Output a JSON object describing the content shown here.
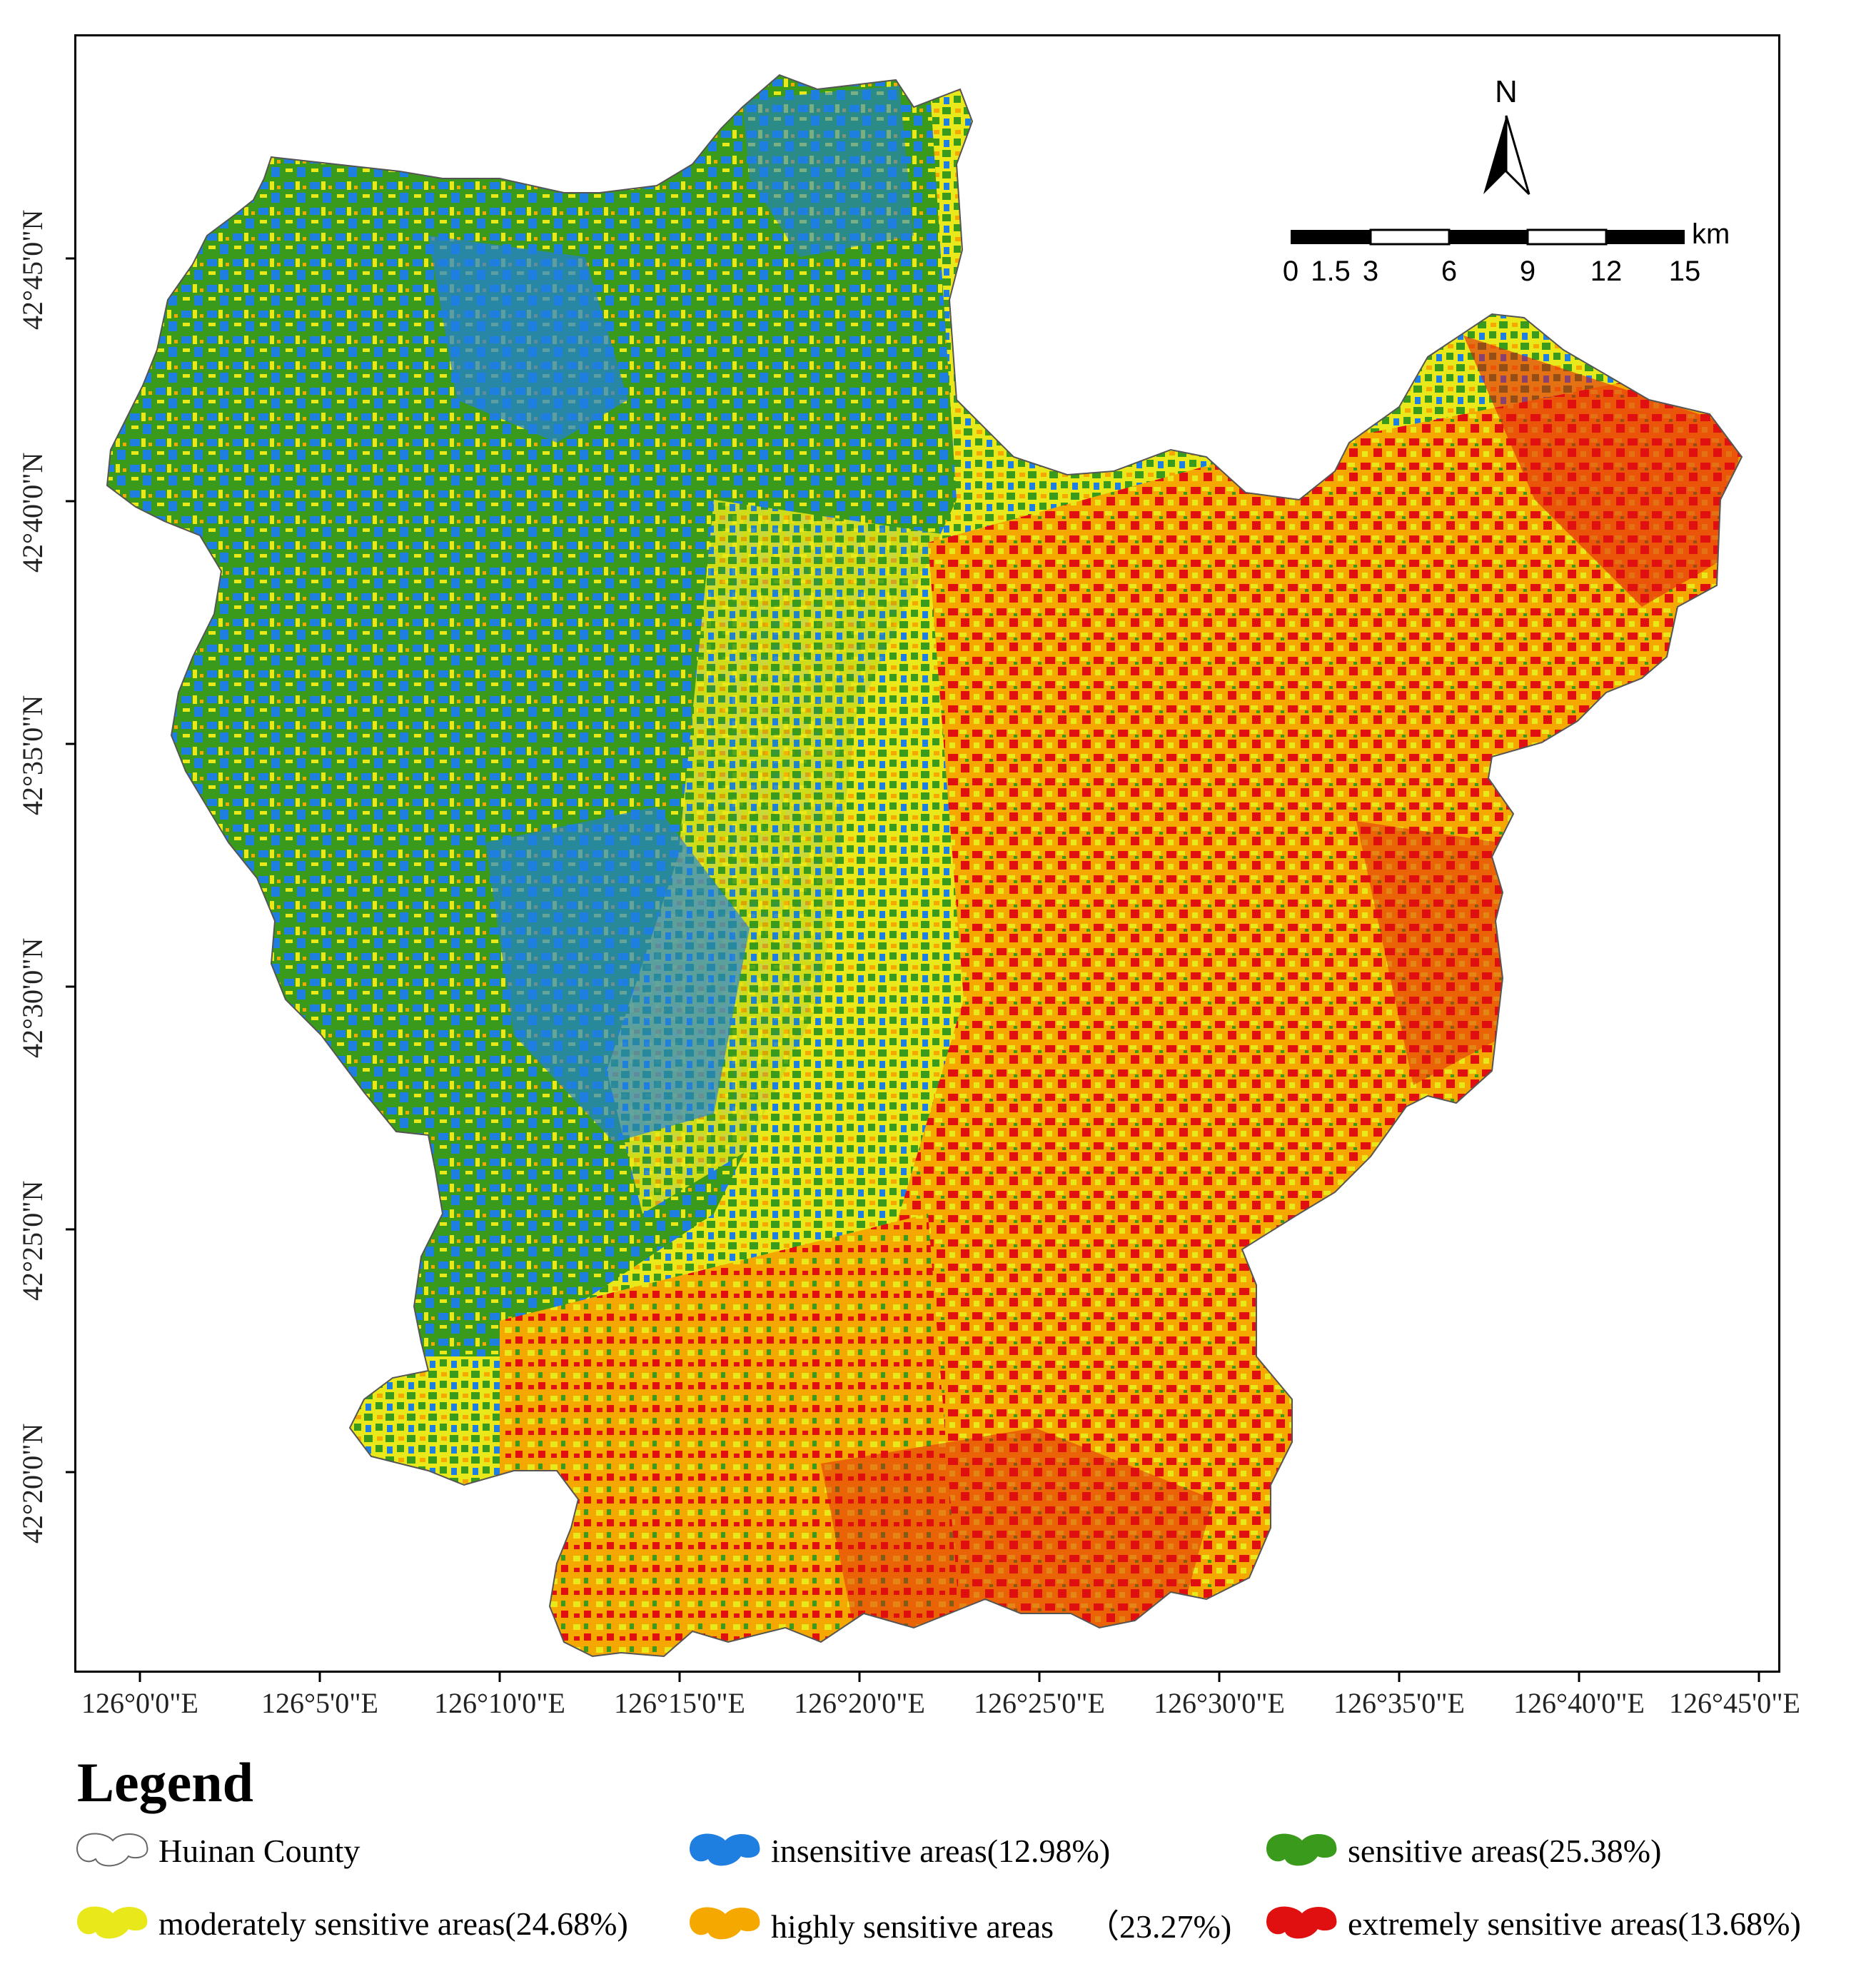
{
  "map": {
    "north_label": "N",
    "scale_unit": "km",
    "scale_ticks": [
      "0",
      "1.5",
      "3",
      "6",
      "9",
      "12",
      "15"
    ],
    "lat_labels": [
      "42°45'0\"N",
      "42°40'0\"N",
      "42°35'0\"N",
      "42°30'0\"N",
      "42°25'0\"N",
      "42°20'0\"N"
    ],
    "lon_labels": [
      "126°0'0\"E",
      "126°5'0\"E",
      "126°10'0\"E",
      "126°15'0\"E",
      "126°20'0\"E",
      "126°25'0\"E",
      "126°30'0\"E",
      "126°35'0\"E",
      "126°40'0\"E",
      "126°45'0\"E"
    ],
    "colors": {
      "insensitive": "#1f7fe0",
      "sensitive": "#3a9a1c",
      "moderate": "#e8e81a",
      "high": "#f5a800",
      "extreme": "#e01010"
    }
  },
  "legend": {
    "title": "Legend",
    "items": [
      {
        "label": "Huinan County",
        "color": "#ffffff"
      },
      {
        "label": "insensitive areas(12.98%)",
        "color": "#1f7fe0"
      },
      {
        "label": "sensitive areas(25.38%)",
        "color": "#3a9a1c"
      },
      {
        "label": "moderately sensitive areas(24.68%)",
        "color": "#e8e81a"
      },
      {
        "label": "highly sensitive areas    （23.27%)",
        "color": "#f5a800"
      },
      {
        "label": "extremely sensitive areas(13.68%)",
        "color": "#e01010"
      }
    ]
  }
}
